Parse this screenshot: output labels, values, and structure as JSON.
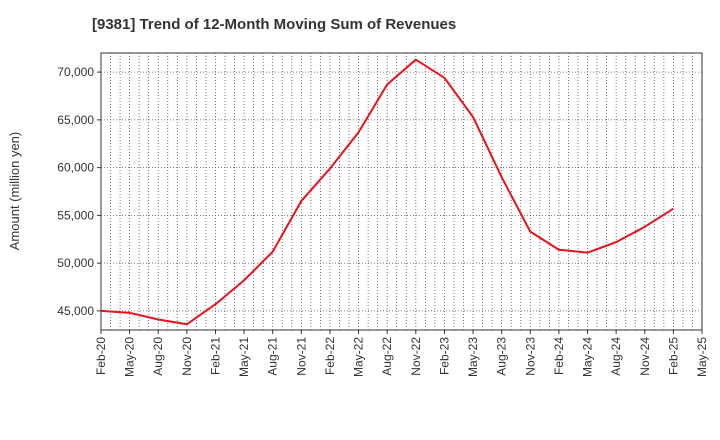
{
  "chart_data": {
    "type": "line",
    "title": "[9381]  Trend of 12-Month Moving Sum of Revenues",
    "xlabel": "",
    "ylabel": "Amount (million yen)",
    "x_tick_labels": [
      "Feb-20",
      "May-20",
      "Aug-20",
      "Nov-20",
      "Feb-21",
      "May-21",
      "Aug-21",
      "Nov-21",
      "Feb-22",
      "May-22",
      "Aug-22",
      "Nov-22",
      "Feb-23",
      "May-23",
      "Aug-23",
      "Nov-23",
      "Feb-24",
      "May-24",
      "Aug-24",
      "Nov-24",
      "Feb-25",
      "May-25"
    ],
    "y_ticks": [
      45000,
      50000,
      55000,
      60000,
      65000,
      70000
    ],
    "y_tick_labels": [
      "45,000",
      "50,000",
      "55,000",
      "60,000",
      "65,000",
      "70,000"
    ],
    "ylim": [
      43000,
      72000
    ],
    "grid": true,
    "legend": "none",
    "series": [
      {
        "color": "#e8131a",
        "x": [
          "Feb-20",
          "May-20",
          "Aug-20",
          "Nov-20",
          "Feb-21",
          "May-21",
          "Aug-21",
          "Nov-21",
          "Feb-22",
          "May-22",
          "Aug-22",
          "Nov-22",
          "Feb-23",
          "May-23",
          "Aug-23",
          "Nov-23",
          "Feb-24",
          "May-24",
          "Aug-24",
          "Nov-24",
          "Feb-25"
        ],
        "values": [
          45000,
          44800,
          44100,
          43600,
          45700,
          48200,
          51200,
          56500,
          59900,
          63700,
          68700,
          71300,
          69400,
          65300,
          59000,
          53300,
          51400,
          51100,
          52200,
          53800,
          55700
        ]
      }
    ]
  }
}
